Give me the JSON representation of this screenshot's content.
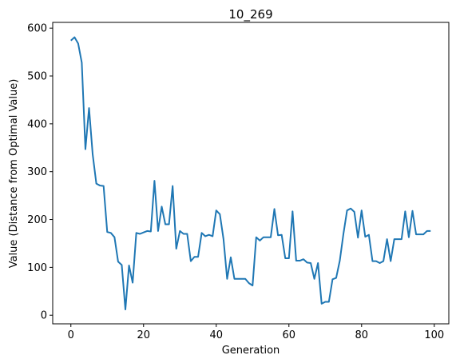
{
  "chart_data": {
    "type": "line",
    "title": "10_269",
    "xlabel": "Generation",
    "ylabel": "Value (Distance from Optimal Value)",
    "xlim": [
      -5,
      104
    ],
    "ylim": [
      -18,
      612
    ],
    "grid": false,
    "x_ticks": [
      0,
      20,
      40,
      60,
      80,
      100
    ],
    "y_ticks": [
      0,
      100,
      200,
      300,
      400,
      500,
      600
    ],
    "x_tick_labels": [
      "0",
      "20",
      "40",
      "60",
      "80",
      "100"
    ],
    "y_tick_labels": [
      "0",
      "100",
      "200",
      "300",
      "400",
      "500",
      "600"
    ],
    "series": [
      {
        "color": "#1f77b4",
        "x": [
          0,
          1,
          2,
          3,
          4,
          5,
          6,
          7,
          8,
          9,
          10,
          11,
          12,
          13,
          14,
          15,
          16,
          17,
          18,
          19,
          20,
          21,
          22,
          23,
          24,
          25,
          26,
          27,
          28,
          29,
          30,
          31,
          32,
          33,
          34,
          35,
          36,
          37,
          38,
          39,
          40,
          41,
          42,
          43,
          44,
          45,
          46,
          47,
          48,
          49,
          50,
          51,
          52,
          53,
          54,
          55,
          56,
          57,
          58,
          59,
          60,
          61,
          62,
          63,
          64,
          65,
          66,
          67,
          68,
          69,
          70,
          71,
          72,
          73,
          74,
          75,
          76,
          77,
          78,
          79,
          80,
          81,
          82,
          83,
          84,
          85,
          86,
          87,
          88,
          89,
          90,
          91,
          92,
          93,
          94,
          95,
          96,
          97,
          98,
          99
        ],
        "values": [
          574,
          581,
          568,
          528,
          347,
          433,
          336,
          275,
          271,
          270,
          174,
          172,
          163,
          112,
          105,
          12,
          104,
          68,
          172,
          170,
          173,
          176,
          175,
          281,
          176,
          227,
          190,
          190,
          270,
          139,
          176,
          170,
          170,
          113,
          122,
          122,
          172,
          165,
          168,
          165,
          219,
          211,
          159,
          76,
          121,
          76,
          76,
          76,
          76,
          67,
          62,
          163,
          156,
          163,
          163,
          163,
          222,
          167,
          168,
          119,
          119,
          217,
          114,
          114,
          117,
          110,
          109,
          76,
          109,
          24,
          28,
          28,
          75,
          78,
          114,
          170,
          219,
          223,
          216,
          162,
          219,
          164,
          168,
          113,
          113,
          109,
          113,
          159,
          113,
          159,
          159,
          159,
          217,
          163,
          218,
          169,
          169,
          169,
          176,
          176
        ]
      }
    ]
  }
}
